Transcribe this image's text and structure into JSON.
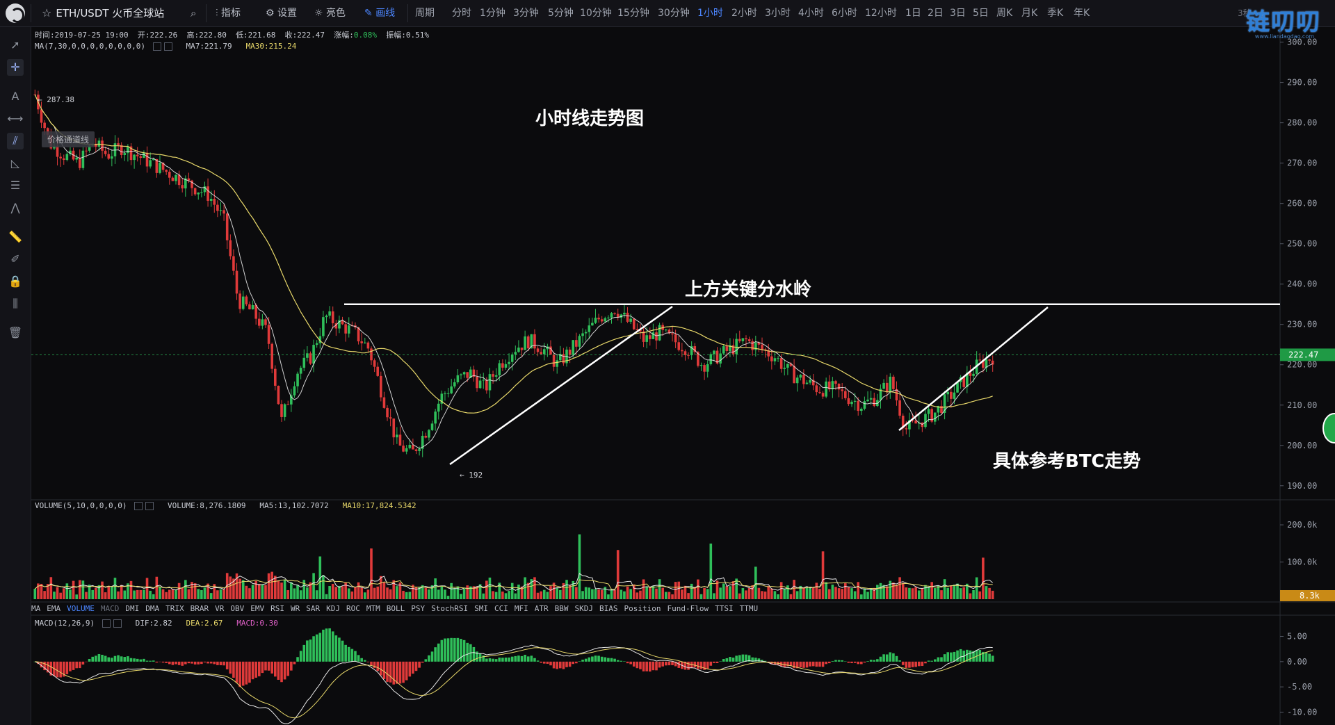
{
  "toolbar": {
    "symbol": "ETH/USDT 火币全球站",
    "indicators_label": "指标",
    "settings_label": "设置",
    "brightness_label": "亮色",
    "draw_label": "画线",
    "period_label": "周期",
    "periods": [
      "分时",
      "1分钟",
      "3分钟",
      "5分钟",
      "10分钟",
      "15分钟",
      "30分钟",
      "1小时",
      "2小时",
      "3小时",
      "4小时",
      "6小时",
      "12小时",
      "1日",
      "2日",
      "3日",
      "5日",
      "周K",
      "月K",
      "季K",
      "年K"
    ],
    "active_period": "1小时",
    "refresh_label": "3秒"
  },
  "brand": {
    "name": "链叨叨",
    "sub": "www.liandaodao.com"
  },
  "candle_info": {
    "time": "时间:2019-07-25 19:00",
    "open": "开:222.26",
    "high": "高:222.80",
    "low": "低:221.68",
    "close": "收:222.47",
    "change_label": "涨幅:",
    "change_value": "0.08%",
    "amplitude": "振幅:0.51%"
  },
  "ma_info": {
    "params": "MA(7,30,0,0,0,0,0,0,0,0)",
    "ma7": "MA7:221.79",
    "ma30": "MA30:215.24"
  },
  "volume_info": {
    "params": "VOLUME(5,10,0,0,0,0)",
    "volume": "VOLUME:8,276.1809",
    "ma5": "MA5:13,102.7072",
    "ma10": "MA10:17,824.5342"
  },
  "macd_info": {
    "params": "MACD(12,26,9)",
    "dif": "DIF:2.82",
    "dea": "DEA:2.67",
    "macd": "MACD:0.30"
  },
  "indicators": [
    "MA",
    "EMA",
    "VOLUME",
    "MACD",
    "DMI",
    "DMA",
    "TRIX",
    "BRAR",
    "VR",
    "OBV",
    "EMV",
    "RSI",
    "WR",
    "SAR",
    "KDJ",
    "ROC",
    "MTM",
    "BOLL",
    "PSY",
    "StochRSI",
    "SMI",
    "CCI",
    "MFI",
    "ATR",
    "BBW",
    "SKDJ",
    "BIAS",
    "Position",
    "Fund-Flow",
    "TTSI",
    "TTMU"
  ],
  "active_indicator": "VOLUME",
  "annotations": {
    "title": "小时线走势图",
    "resistance": "上方关键分水岭",
    "reference": "具体参考BTC走势",
    "channel_tag": "价格通道线",
    "high_marker": "← 287.38",
    "low_marker": "← 192"
  },
  "price_axis": {
    "labels": [
      "300.00",
      "290.00",
      "280.00",
      "270.00",
      "260.00",
      "250.00",
      "240.00",
      "230.00",
      "220.00",
      "210.00",
      "200.00",
      "190.00"
    ],
    "current_price": "222.47"
  },
  "volume_axis": {
    "labels": [
      "200.0k",
      "100.0k"
    ],
    "current": "8.3k"
  },
  "macd_axis": {
    "labels": [
      "5.00",
      "0.00",
      "-5.00",
      "-10.00"
    ]
  },
  "colors": {
    "up": "#2fbf5a",
    "down": "#e03a3a",
    "accent": "#4c86ff",
    "ma7": "#e8e8e8",
    "ma30": "#e8d86a"
  },
  "chart_data": {
    "type": "candlestick",
    "symbol": "ETH/USDT",
    "interval": "1小时",
    "price_range": [
      186,
      302
    ],
    "close_series_approx": [
      287,
      275,
      272,
      270,
      275,
      272,
      274,
      272,
      270,
      268,
      266,
      264,
      262,
      256,
      236,
      233,
      228,
      206,
      218,
      222,
      232,
      230,
      228,
      224,
      212,
      200,
      198,
      204,
      212,
      216,
      218,
      214,
      220,
      224,
      226,
      224,
      220,
      224,
      228,
      232,
      234,
      230,
      226,
      228,
      226,
      224,
      220,
      222,
      224,
      226,
      224,
      222,
      218,
      216,
      214,
      214,
      212,
      210,
      212,
      216,
      204,
      206,
      208,
      212,
      216,
      220,
      222
    ],
    "resistance_level": 235,
    "period_high": 287.38,
    "period_low": 192,
    "last_close": 222.47
  }
}
